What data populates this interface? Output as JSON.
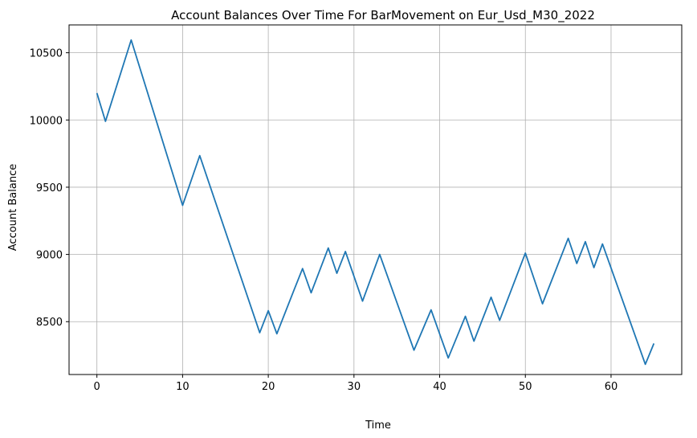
{
  "chart_data": {
    "type": "line",
    "title": "Account Balances Over Time For BarMovement on Eur_Usd_M30_2022",
    "xlabel": "Time",
    "ylabel": "Account Balance",
    "xlim": [
      -3.25,
      68.25
    ],
    "ylim": [
      8107,
      10707
    ],
    "xticks": [
      0,
      10,
      20,
      30,
      40,
      50,
      60
    ],
    "yticks": [
      8500,
      9000,
      9500,
      10000,
      10500
    ],
    "grid": true,
    "series": [
      {
        "color": "#1f77b4",
        "x": [
          0,
          1,
          4,
          10,
          12,
          19,
          20,
          21,
          23,
          24,
          25,
          27,
          28,
          29,
          31,
          33,
          37,
          39,
          41,
          43,
          44,
          46,
          47,
          50,
          52,
          55,
          56,
          57,
          58,
          59,
          64,
          65
        ],
        "y": [
          10200,
          9990,
          10595,
          9365,
          9735,
          8418,
          8582,
          8410,
          8735,
          8895,
          8715,
          9048,
          8860,
          9022,
          8653,
          9000,
          8288,
          8588,
          8230,
          8540,
          8355,
          8682,
          8510,
          9010,
          8633,
          9120,
          8933,
          9095,
          8902,
          9078,
          8183,
          8338
        ]
      }
    ]
  }
}
